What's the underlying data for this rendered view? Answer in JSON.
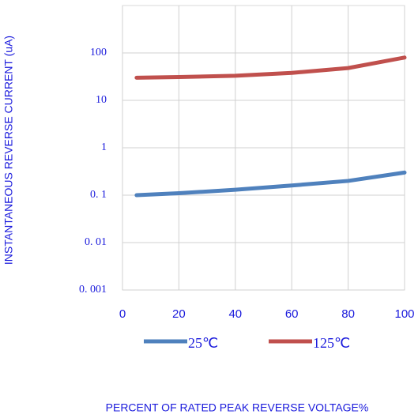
{
  "chart_data": {
    "type": "line",
    "xlabel": "PERCENT OF RATED PEAK REVERSE VOLTAGE%",
    "ylabel": "INSTANTANEOUS REVERSE CURRENT (uA)",
    "x": [
      5,
      20,
      40,
      60,
      80,
      100
    ],
    "series": [
      {
        "name": "25℃",
        "color": "#4f81bd",
        "values": [
          0.1,
          0.11,
          0.13,
          0.16,
          0.2,
          0.3
        ]
      },
      {
        "name": "125℃",
        "color": "#c0504d",
        "values": [
          30,
          31,
          33,
          38,
          48,
          80
        ]
      }
    ],
    "xlim": [
      0,
      100
    ],
    "xticks": [
      0,
      20,
      40,
      60,
      80,
      100
    ],
    "ylim": [
      0.001,
      1000
    ],
    "log_y": true,
    "yticks": [
      {
        "value": 0.001,
        "label": "0. 001"
      },
      {
        "value": 0.01,
        "label": "0. 01"
      },
      {
        "value": 0.1,
        "label": "0. 1"
      },
      1,
      10,
      100
    ],
    "grid": true,
    "legend": "bottom"
  }
}
